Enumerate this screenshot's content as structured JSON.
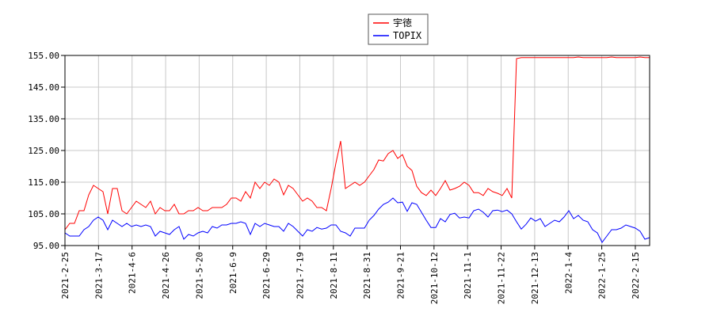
{
  "chart_data": {
    "type": "line",
    "title": "",
    "xlabel": "",
    "ylabel": "",
    "ylim": [
      95,
      155
    ],
    "grid": true,
    "legend_placement": "top-center",
    "y_ticks": [
      "155.00",
      "145.00",
      "135.00",
      "125.00",
      "115.00",
      "105.00",
      "95.00"
    ],
    "y_tick_values": [
      155,
      145,
      135,
      125,
      115,
      105,
      95
    ],
    "x_ticks": [
      "2021-2-25",
      "2021-3-17",
      "2021-4-6",
      "2021-4-26",
      "2021-5-20",
      "2021-6-9",
      "2021-6-29",
      "2021-7-19",
      "2021-8-11",
      "2021-8-31",
      "2021-9-21",
      "2021-10-12",
      "2021-11-1",
      "2021-11-22",
      "2021-12-13",
      "2022-1-4",
      "2022-1-25",
      "2022-2-15"
    ],
    "series": [
      {
        "name": "宇徳",
        "color": "#ff0000",
        "values": [
          100,
          102,
          102,
          106,
          106,
          111,
          114,
          113,
          112,
          105,
          113,
          113,
          106,
          105,
          107,
          109,
          108,
          107,
          109,
          105,
          107,
          106,
          106,
          108,
          105,
          105,
          106,
          106,
          107,
          106,
          106,
          107,
          107,
          107,
          108,
          110,
          110,
          109,
          112,
          110,
          115,
          113,
          115,
          114,
          116,
          115,
          111,
          114,
          113,
          111,
          109,
          110,
          109,
          107,
          107,
          106,
          113,
          121,
          128,
          113,
          114,
          115,
          114,
          115,
          117,
          119,
          122,
          121.7,
          124,
          125,
          122.5,
          123.7,
          120,
          118.7,
          113.7,
          111.7,
          110.8,
          112.5,
          110.8,
          113,
          115.5,
          112.5,
          113,
          113.7,
          115,
          114,
          111.7,
          111.7,
          110.8,
          113,
          112,
          111.5,
          110.8,
          113,
          110,
          154,
          154.3,
          154.3,
          154.3,
          154.3,
          154.3,
          154.3,
          154.3,
          154.3,
          154.3,
          154.3,
          154.3,
          154.3,
          154.5,
          154.3,
          154.3,
          154.3,
          154.3,
          154.3,
          154.3,
          154.5,
          154.3,
          154.3,
          154.3,
          154.3,
          154.3,
          154.5,
          154.3,
          154.3
        ]
      },
      {
        "name": "TOPIX",
        "color": "#0000ff",
        "values": [
          99,
          98,
          98,
          98,
          100,
          101,
          103,
          104,
          103,
          100,
          103,
          102,
          101,
          102,
          101,
          101.5,
          101,
          101.5,
          101,
          98,
          99.5,
          99,
          98.5,
          100,
          101,
          97,
          98.5,
          98,
          99,
          99.5,
          99,
          101,
          100.5,
          101.5,
          101.5,
          102,
          102,
          102.5,
          102,
          98.5,
          102,
          101,
          102,
          101.5,
          101,
          101,
          99.5,
          102,
          101,
          99.5,
          98,
          100,
          99.5,
          100.7,
          100.2,
          100.5,
          101.5,
          101.5,
          99.5,
          99,
          98,
          100.5,
          100.5,
          100.5,
          103,
          104.5,
          106.5,
          108,
          108.7,
          110,
          108.5,
          108.7,
          105.8,
          108.5,
          108,
          105.5,
          103,
          100.7,
          100.7,
          103.5,
          102.5,
          104.8,
          105.2,
          103.7,
          104,
          103.7,
          106,
          106.5,
          105.5,
          104,
          106,
          106.2,
          105.7,
          106.2,
          105,
          102.5,
          100.2,
          101.7,
          103.7,
          102.7,
          103.5,
          101,
          102,
          103,
          102.5,
          104,
          106,
          103.5,
          104.5,
          103,
          102.5,
          100,
          99,
          96,
          98,
          100,
          100,
          100.5,
          101.5,
          101,
          100.5,
          99.5,
          97,
          97.5
        ]
      }
    ]
  }
}
